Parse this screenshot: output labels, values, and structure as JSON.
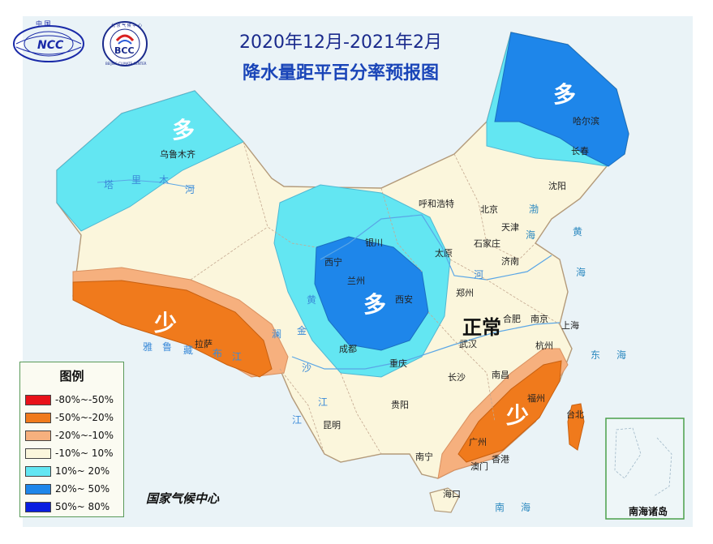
{
  "title": {
    "line1": "2020年12月-2021年2月",
    "line2": "降水量距平百分率预报图"
  },
  "logos": {
    "ncc_top": "中 国",
    "ncc_text": "NCC",
    "bcc_top": "北 京 气 候 中 心",
    "bcc_text": "BCC",
    "bcc_ring": "BEIJING CLIMATE CENTER"
  },
  "legend": {
    "title": "图例",
    "items": [
      {
        "label": "-80%~-50%",
        "color": "#e8121a"
      },
      {
        "label": "-50%~-20%",
        "color": "#f07a1c"
      },
      {
        "label": "-20%~-10%",
        "color": "#f6b07e"
      },
      {
        "label": "-10%~ 10%",
        "color": "#fbf6dc"
      },
      {
        "label": "10%~ 20%",
        "color": "#63e6f2"
      },
      {
        "label": "20%~ 50%",
        "color": "#1e86ea"
      },
      {
        "label": "50%~ 80%",
        "color": "#0a1ee0"
      }
    ]
  },
  "agency": "国家气候中心",
  "inset_label": "南海诸岛",
  "region_labels": {
    "more_northwest": "多",
    "more_northeast": "多",
    "more_central": "多",
    "less_tibet": "少",
    "less_southeast": "少",
    "normal": "正常"
  },
  "cities": {
    "urumqi": "乌鲁木齐",
    "harbin": "哈尔滨",
    "changchun": "长春",
    "shenyang": "沈阳",
    "hohhot": "呼和浩特",
    "beijing": "北京",
    "tianjin": "天津",
    "shijiazhuang": "石家庄",
    "taiyuan": "太原",
    "jinan": "济南",
    "yinchuan": "银川",
    "xining": "西宁",
    "lanzhou": "兰州",
    "xian": "西安",
    "zhengzhou": "郑州",
    "hefei": "合肥",
    "nanjing": "南京",
    "shanghai": "上海",
    "hangzhou": "杭州",
    "wuhan": "武汉",
    "chengdu": "成都",
    "chongqing": "重庆",
    "changsha": "长沙",
    "nanchang": "南昌",
    "fuzhou": "福州",
    "taibei": "台北",
    "guiyang": "贵阳",
    "kunming": "昆明",
    "lhasa": "拉萨",
    "nanning": "南宁",
    "guangzhou": "广州",
    "xianggang": "香港",
    "aomen": "澳门",
    "haikou": "海口"
  },
  "water_labels": {
    "tarim_1": "塔",
    "tarim_2": "里",
    "tarim_3": "木",
    "tarim_4": "河",
    "yarlung_1": "雅",
    "yarlung_2": "鲁",
    "yarlung_3": "藏",
    "yarlung_4": "布",
    "yarlung_5": "江",
    "yellow_1": "黄",
    "yellow_2": "河",
    "jinsha_1": "金",
    "jinsha_2": "沙",
    "jinsha_3": "江",
    "lancang": "澜",
    "nujiang": "江",
    "bohai_1": "渤",
    "bohai_2": "海",
    "huanghai_1": "黄",
    "huanghai_2": "海",
    "donghai_1": "东",
    "donghai_2": "海",
    "nanhai_1": "南",
    "nanhai_2": "海"
  }
}
